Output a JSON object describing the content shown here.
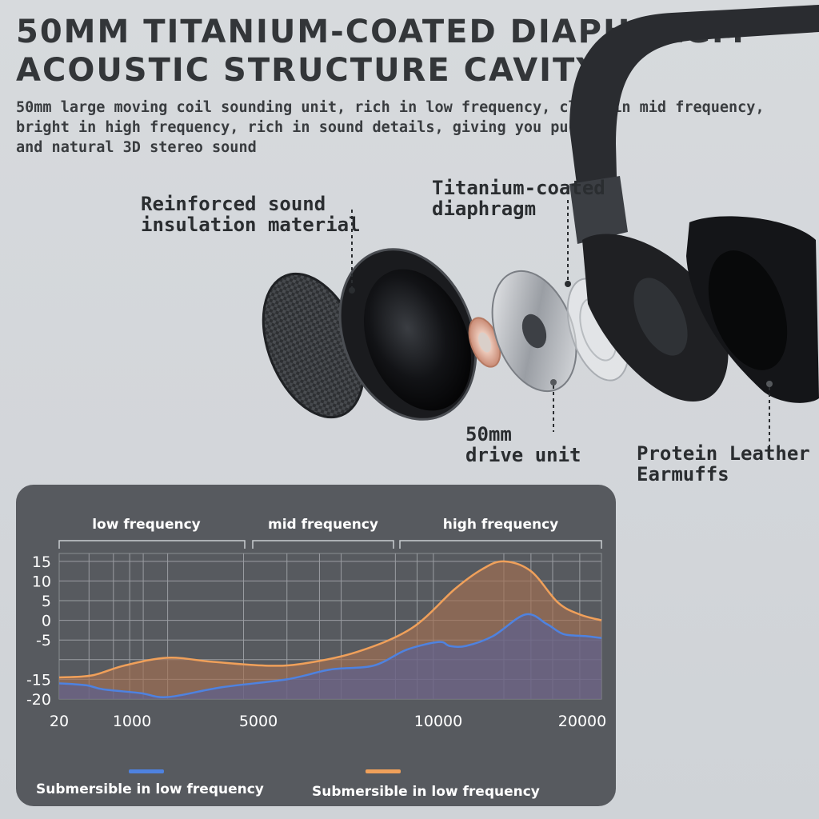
{
  "title": {
    "line1": "50MM TITANIUM-COATED DIAPHRAGM",
    "line2": "ACOUSTIC STRUCTURE CAVITY"
  },
  "description": {
    "line1": "50mm large moving coil sounding unit, rich in low frequency, clear in mid frequency,",
    "line2": "bright in high frequency, rich in sound details, giving you pure",
    "line3": "and natural 3D stereo sound"
  },
  "labels": {
    "insulation": {
      "line1": "Reinforced sound",
      "line2": "insulation material"
    },
    "diaphragm": {
      "line1": "Titanium-coated",
      "line2": "diaphragm"
    },
    "drive_unit": {
      "line1": "50mm",
      "line2": "drive unit"
    },
    "earmuffs": {
      "line1": "Protein Leather",
      "line2": "Earmuffs"
    }
  },
  "colors": {
    "blue": "#4e82e0",
    "orange": "#f0a05a",
    "panel": "#575a5f"
  },
  "chart_data": {
    "type": "area",
    "bands": [
      "low frequency",
      "mid frequency",
      "high frequency"
    ],
    "x_ticks": [
      "20",
      "1000",
      "5000",
      "10000",
      "20000"
    ],
    "y_ticks": [
      "15",
      "10",
      "5",
      "0",
      "-5",
      "-15",
      "-20"
    ],
    "ylim": [
      -20,
      17
    ],
    "x_scale": "index 0-1 across tick positions",
    "series": [
      {
        "name": "Submersible in low frequency",
        "color": "#4e82e0",
        "x": [
          0,
          0.05,
          0.08,
          0.15,
          0.2,
          0.3,
          0.42,
          0.5,
          0.58,
          0.64,
          0.7,
          0.72,
          0.75,
          0.8,
          0.86,
          0.9,
          0.93,
          0.97,
          1.0
        ],
        "y": [
          -16,
          -16.5,
          -17.5,
          -18.5,
          -19.5,
          -17,
          -15,
          -12.5,
          -11.5,
          -7.5,
          -5.5,
          -6.5,
          -6.5,
          -4,
          1.5,
          -1,
          -3.5,
          -4,
          -4.5
        ]
      },
      {
        "name": "Submersible in low frequency",
        "color": "#f0a05a",
        "x": [
          0,
          0.06,
          0.12,
          0.2,
          0.28,
          0.38,
          0.45,
          0.55,
          0.65,
          0.73,
          0.78,
          0.82,
          0.87,
          0.92,
          0.96,
          1.0
        ],
        "y": [
          -14.5,
          -14,
          -11.5,
          -9.5,
          -10.5,
          -11.5,
          -11,
          -8,
          -2,
          8,
          13,
          15,
          12.5,
          4.5,
          1.5,
          0
        ]
      }
    ]
  }
}
